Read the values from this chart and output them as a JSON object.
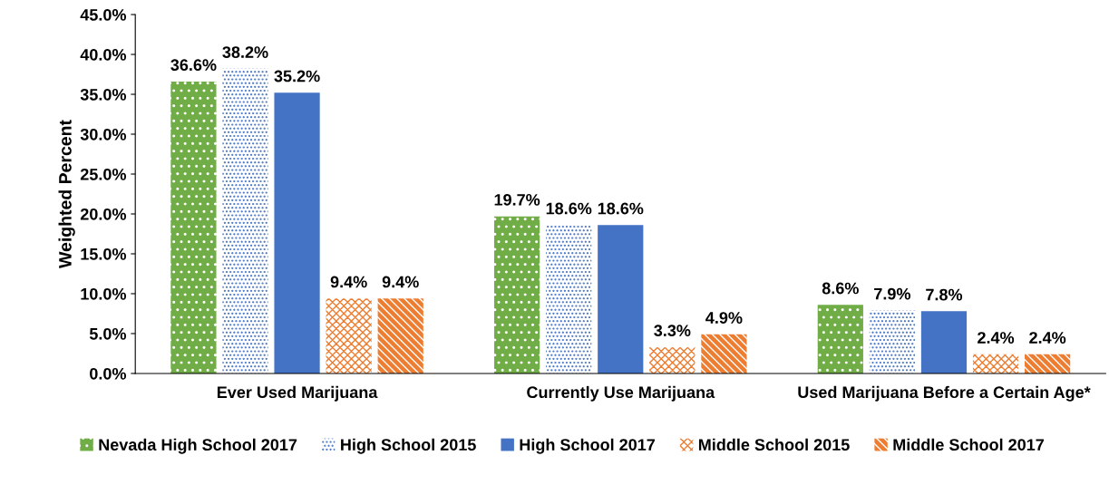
{
  "chart_data": {
    "type": "bar",
    "ylabel": "Weighted Percent",
    "categories": [
      "Ever Used Marijuana",
      "Currently Use Marijuana",
      "Used Marijuana Before a Certain Age*"
    ],
    "series": [
      {
        "name": "Nevada High School 2017",
        "color": "#70ad47",
        "values": [
          36.6,
          19.7,
          8.6
        ],
        "value_labels": [
          "36.6%",
          "19.7%",
          "8.6%"
        ]
      },
      {
        "name": "High School 2015",
        "color": "#4472c4",
        "values": [
          38.2,
          18.6,
          7.9
        ],
        "value_labels": [
          "38.2%",
          "18.6%",
          "7.9%"
        ]
      },
      {
        "name": "High School 2017",
        "color": "#4472c4",
        "values": [
          35.2,
          18.6,
          7.8
        ],
        "value_labels": [
          "35.2%",
          "18.6%",
          "7.8%"
        ]
      },
      {
        "name": "Middle School 2015",
        "color": "#ed7d31",
        "values": [
          9.4,
          3.3,
          2.4
        ],
        "value_labels": [
          "9.4%",
          "3.3%",
          "2.4%"
        ]
      },
      {
        "name": "Middle School 2017",
        "color": "#ed7d31",
        "values": [
          9.4,
          4.9,
          2.4
        ],
        "value_labels": [
          "9.4%",
          "4.9%",
          "2.4%"
        ]
      }
    ],
    "ylim": [
      0,
      45
    ],
    "yticks": [
      {
        "value": 0,
        "label": "0.0%"
      },
      {
        "value": 5,
        "label": "5.0%"
      },
      {
        "value": 10,
        "label": "10.0%"
      },
      {
        "value": 15,
        "label": "15.0%"
      },
      {
        "value": 20,
        "label": "20.0%"
      },
      {
        "value": 25,
        "label": "25.0%"
      },
      {
        "value": 30,
        "label": "30.0%"
      },
      {
        "value": 35,
        "label": "35.0%"
      },
      {
        "value": 40,
        "label": "40.0%"
      },
      {
        "value": 45,
        "label": "45.0%"
      }
    ],
    "grid": false,
    "legend": "bottom"
  }
}
